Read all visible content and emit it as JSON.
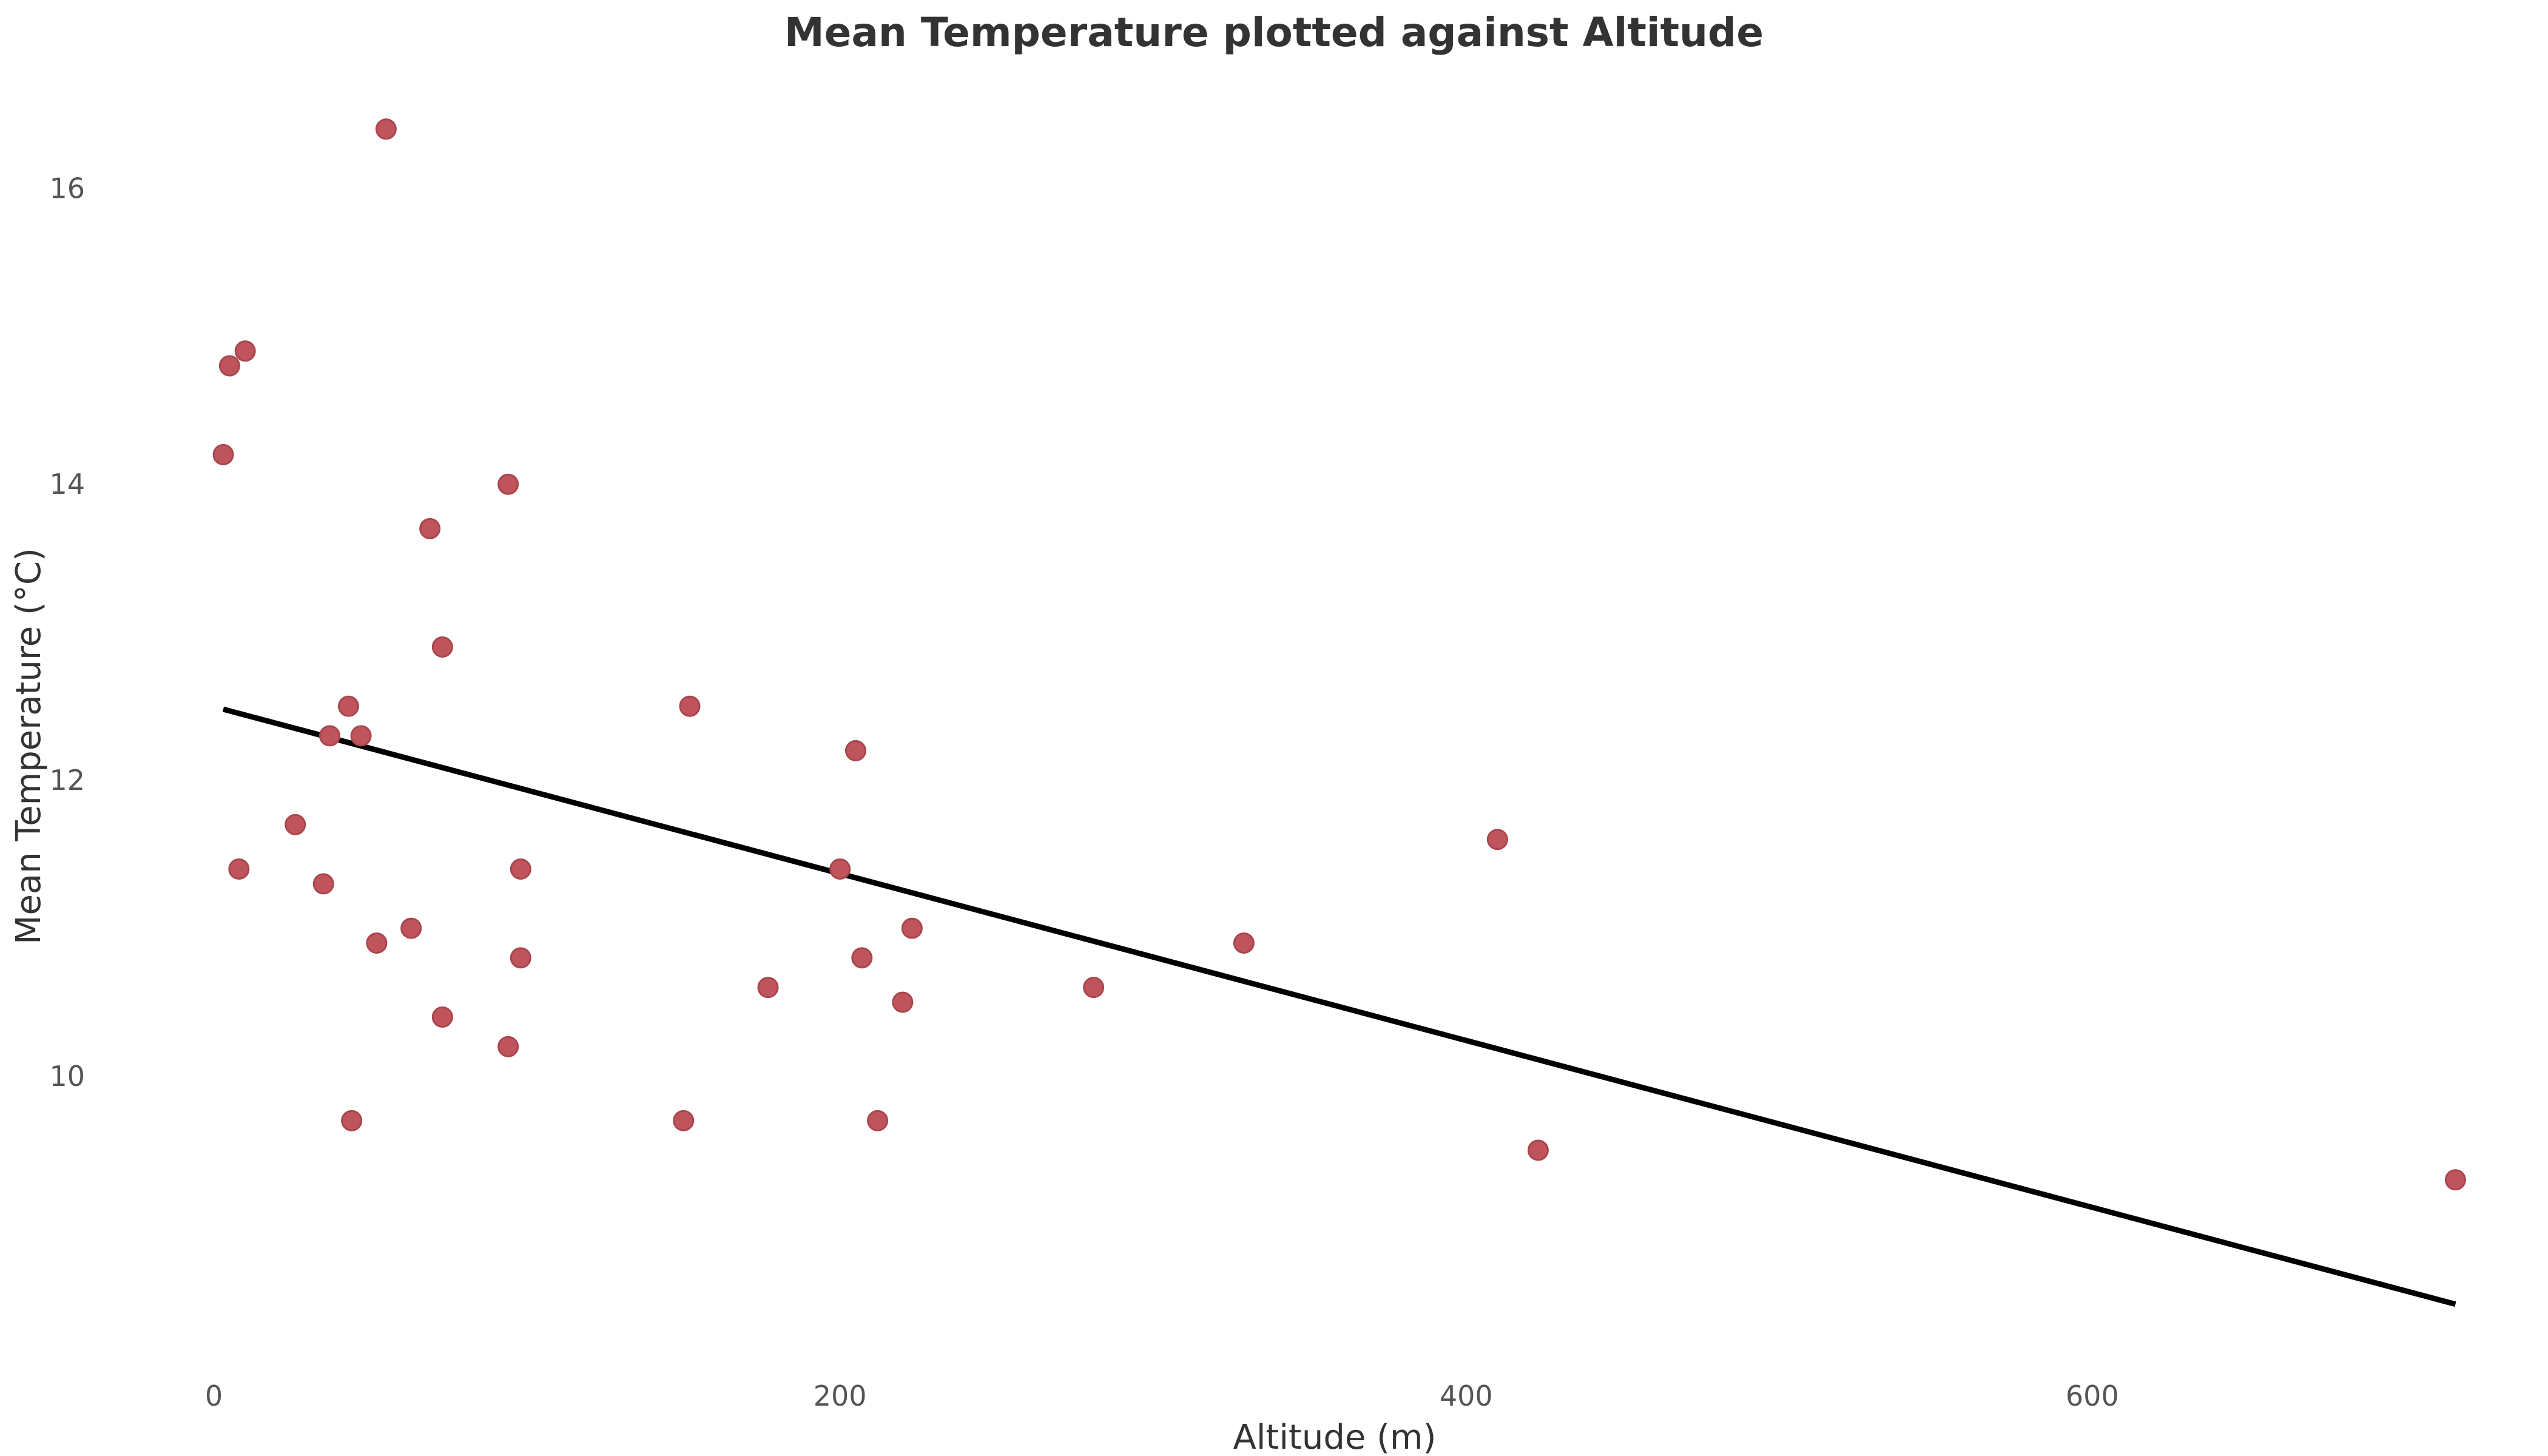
{
  "chart_data": {
    "type": "scatter",
    "title": "Mean Temperature plotted against Altitude",
    "xlabel": "Altitude (m)",
    "ylabel": "Mean Temperature (°C)",
    "xlim": [
      -16,
      732
    ],
    "ylim": [
      8.09,
      16.78
    ],
    "x_ticks": [
      0,
      200,
      400,
      600
    ],
    "y_ticks": [
      10,
      12,
      14,
      16
    ],
    "grid": false,
    "legend": "none",
    "point_color": "#c0545c",
    "trend_color": "#000000",
    "points": [
      {
        "x": 3,
        "y": 14.2
      },
      {
        "x": 5,
        "y": 14.8
      },
      {
        "x": 8,
        "y": 11.4
      },
      {
        "x": 10,
        "y": 14.9
      },
      {
        "x": 26,
        "y": 11.7
      },
      {
        "x": 35,
        "y": 11.3
      },
      {
        "x": 37,
        "y": 12.3
      },
      {
        "x": 43,
        "y": 12.5
      },
      {
        "x": 44,
        "y": 9.7
      },
      {
        "x": 47,
        "y": 12.3
      },
      {
        "x": 52,
        "y": 10.9
      },
      {
        "x": 55,
        "y": 16.4
      },
      {
        "x": 63,
        "y": 11.0
      },
      {
        "x": 69,
        "y": 13.7
      },
      {
        "x": 73,
        "y": 12.9
      },
      {
        "x": 73,
        "y": 10.4
      },
      {
        "x": 94,
        "y": 14.0
      },
      {
        "x": 94,
        "y": 10.2
      },
      {
        "x": 98,
        "y": 11.4
      },
      {
        "x": 98,
        "y": 10.8
      },
      {
        "x": 150,
        "y": 9.7
      },
      {
        "x": 152,
        "y": 12.5
      },
      {
        "x": 177,
        "y": 10.6
      },
      {
        "x": 200,
        "y": 11.4
      },
      {
        "x": 205,
        "y": 12.2
      },
      {
        "x": 207,
        "y": 10.8
      },
      {
        "x": 212,
        "y": 9.7
      },
      {
        "x": 220,
        "y": 10.5
      },
      {
        "x": 223,
        "y": 11.0
      },
      {
        "x": 281,
        "y": 10.6
      },
      {
        "x": 329,
        "y": 10.9
      },
      {
        "x": 410,
        "y": 11.6
      },
      {
        "x": 423,
        "y": 9.5
      },
      {
        "x": 716,
        "y": 9.3
      }
    ],
    "trend_line": {
      "x": [
        3,
        716
      ],
      "y": [
        12.48,
        8.46
      ]
    }
  }
}
